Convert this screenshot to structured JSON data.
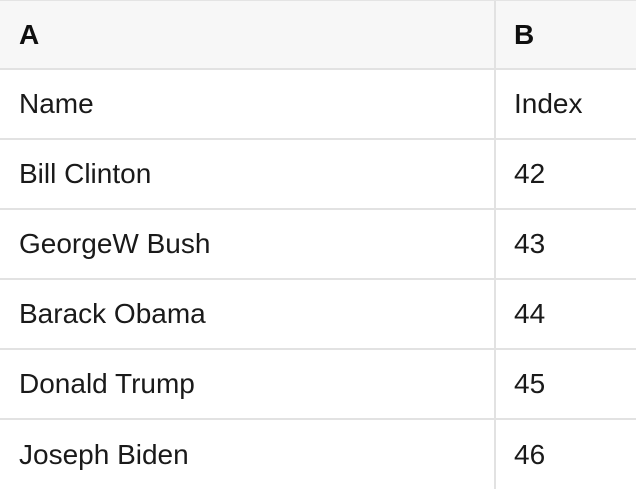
{
  "table": {
    "columns": [
      "A",
      "B"
    ],
    "rows": [
      [
        "Name",
        "Index"
      ],
      [
        "Bill Clinton",
        "42"
      ],
      [
        "GeorgeW Bush",
        "43"
      ],
      [
        "Barack Obama",
        "44"
      ],
      [
        "Donald Trump",
        "45"
      ],
      [
        "Joseph Biden",
        "46"
      ]
    ]
  },
  "colors": {
    "background": "#ffffff",
    "header_background": "#f7f7f7",
    "border": "#e2e2e2",
    "text": "#1a1a1a",
    "header_text": "#0f0f0f"
  }
}
